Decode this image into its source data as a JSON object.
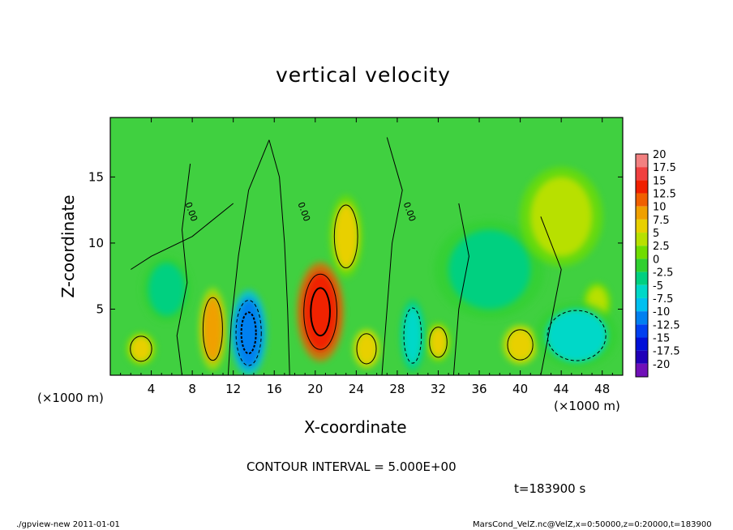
{
  "chart_data": {
    "type": "heatmap",
    "title": "vertical velocity",
    "xlabel": "X-coordinate",
    "ylabel": "Z-coordinate",
    "x_unit_left": "(×1000 m)",
    "x_unit_right": "(×1000 m)",
    "xlim": [
      0,
      50
    ],
    "ylim": [
      0,
      19.5
    ],
    "xticks": [
      "4",
      "8",
      "12",
      "16",
      "20",
      "24",
      "28",
      "32",
      "36",
      "40",
      "44",
      "48"
    ],
    "xtick_values": [
      4,
      8,
      12,
      16,
      20,
      24,
      28,
      32,
      36,
      40,
      44,
      48
    ],
    "yticks": [
      "5",
      "10",
      "15"
    ],
    "ytick_values": [
      5,
      10,
      15
    ],
    "contour_interval_text": "CONTOUR INTERVAL = 5.000E+00",
    "time_text": "t=183900 s",
    "colorbar": {
      "labels": [
        "20",
        "17.5",
        "15",
        "12.5",
        "10",
        "7.5",
        "5",
        "2.5",
        "0",
        "-2.5",
        "-5",
        "-7.5",
        "-10",
        "-12.5",
        "-15",
        "-17.5",
        "-20"
      ],
      "colors": [
        "#f28080",
        "#f04040",
        "#f02000",
        "#f06000",
        "#f0a000",
        "#e8d000",
        "#b8e000",
        "#70dd00",
        "#30d030",
        "#00d080",
        "#00d8c8",
        "#00c0f0",
        "#0080f0",
        "#0040f0",
        "#0010d8",
        "#2000b8",
        "#7010b8"
      ],
      "background": "#40d040"
    },
    "contour_label": "0.00",
    "blobs": [
      {
        "x": 10.0,
        "z": 3.5,
        "rx": 1.0,
        "rz": 2.5,
        "value": 9
      },
      {
        "x": 20.5,
        "z": 4.8,
        "rx": 1.7,
        "rz": 3.0,
        "value": 15
      },
      {
        "x": 23.0,
        "z": 10.5,
        "rx": 1.2,
        "rz": 2.5,
        "value": 6
      },
      {
        "x": 3.0,
        "z": 2.0,
        "rx": 1.1,
        "rz": 1.0,
        "value": 6
      },
      {
        "x": 25.0,
        "z": 2.0,
        "rx": 1.0,
        "rz": 1.2,
        "value": 7
      },
      {
        "x": 32.0,
        "z": 2.5,
        "rx": 0.9,
        "rz": 1.2,
        "value": 6
      },
      {
        "x": 40.0,
        "z": 2.3,
        "rx": 1.3,
        "rz": 1.2,
        "value": 7
      },
      {
        "x": 47.5,
        "z": 5.5,
        "rx": 1.0,
        "rz": 1.2,
        "value": 4
      },
      {
        "x": 13.5,
        "z": 3.2,
        "rx": 1.3,
        "rz": 2.6,
        "value": -12
      },
      {
        "x": 29.5,
        "z": 3.0,
        "rx": 0.9,
        "rz": 2.2,
        "value": -7
      },
      {
        "x": 45.5,
        "z": 3.0,
        "rx": 3.0,
        "rz": 2.0,
        "value": -5
      },
      {
        "x": 5.5,
        "z": 6.5,
        "rx": 1.8,
        "rz": 2.0,
        "value": -3
      },
      {
        "x": 37.0,
        "z": 8.0,
        "rx": 4.0,
        "rz": 3.0,
        "value": -3
      },
      {
        "x": 44.0,
        "z": 12.0,
        "rx": 3.0,
        "rz": 3.0,
        "value": 3
      }
    ]
  },
  "footer": {
    "left": "./gpview-new  2011-01-01",
    "right": "MarsCond_VelZ.nc@VelZ,x=0:50000,z=0:20000,t=183900"
  }
}
